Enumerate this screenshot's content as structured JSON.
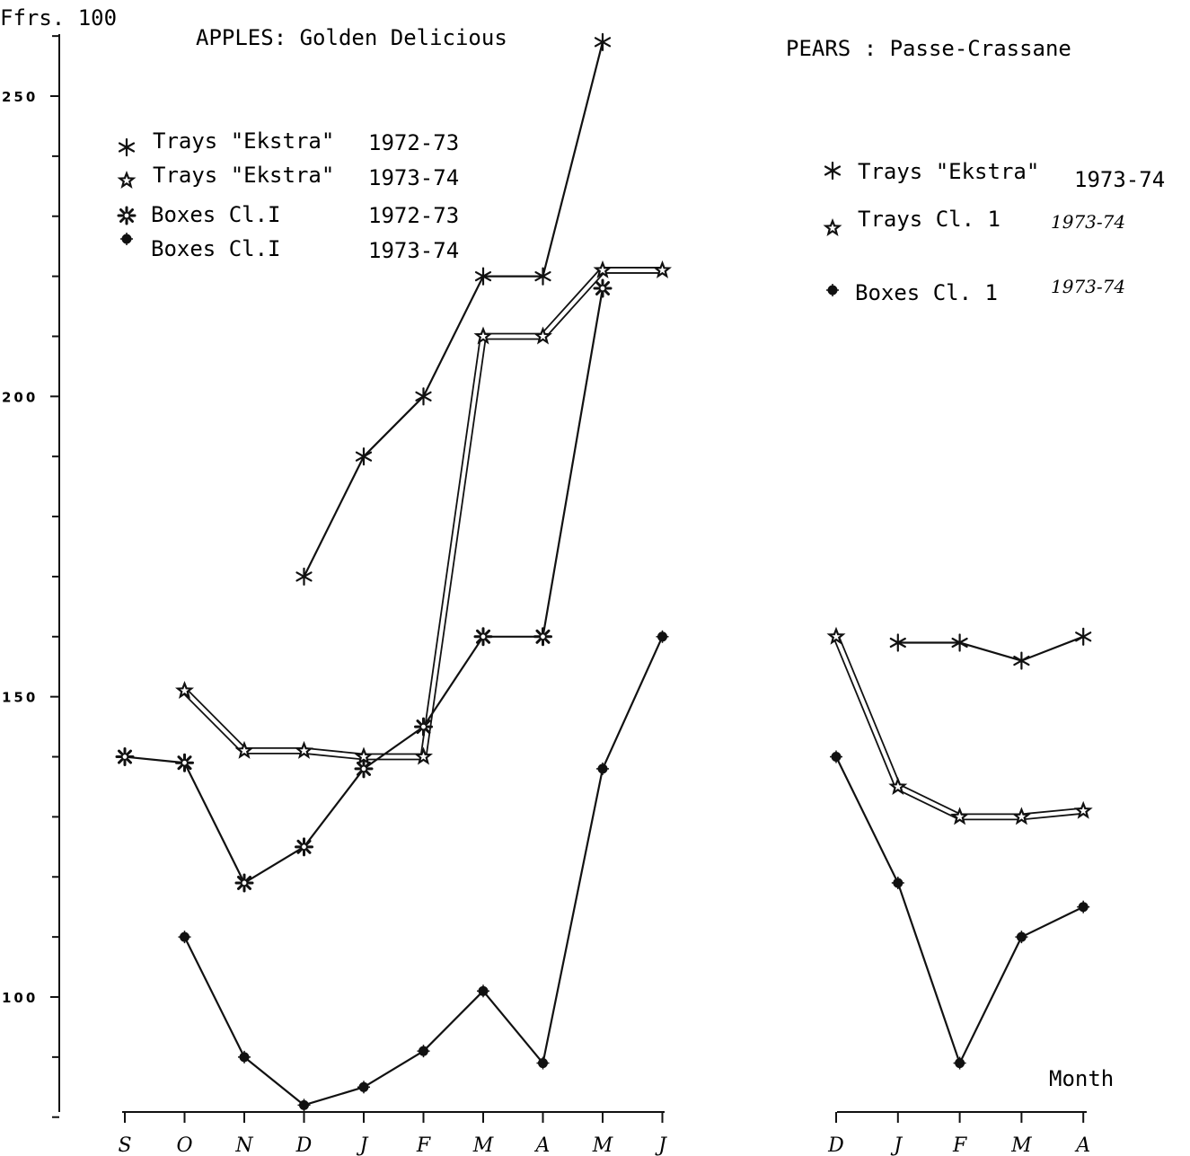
{
  "page": {
    "unit_label": "Ffrs. 100",
    "month_axis_label": "Month"
  },
  "chart_data": [
    {
      "type": "line",
      "title": "APPLES: Golden Delicious",
      "xlabel": "",
      "ylabel": "",
      "categories": [
        "S",
        "O",
        "N",
        "D",
        "J",
        "F",
        "M",
        "A",
        "M",
        "J"
      ],
      "y_ticks": [
        "250",
        "200",
        "150",
        "100"
      ],
      "ylim": [
        80,
        280
      ],
      "legend_position": "top-left",
      "series": [
        {
          "name": "Trays \"Ekstra\"",
          "season": "1972-73",
          "marker": "asterisk",
          "values": [
            null,
            null,
            null,
            170,
            190,
            200,
            220,
            220,
            259,
            null
          ]
        },
        {
          "name": "Trays \"Ekstra\"",
          "season": "1973-74",
          "marker": "star",
          "values": [
            null,
            151,
            141,
            141,
            140,
            140,
            210,
            210,
            221,
            221
          ]
        },
        {
          "name": "Boxes Cl.I",
          "season": "1972-73",
          "marker": "burst",
          "values": [
            140,
            139,
            119,
            125,
            138,
            145,
            160,
            160,
            218,
            null
          ]
        },
        {
          "name": "Boxes Cl.I",
          "season": "1973-74",
          "marker": "dot",
          "values": [
            null,
            110,
            90,
            82,
            85,
            91,
            101,
            89,
            138,
            160
          ]
        }
      ]
    },
    {
      "type": "line",
      "title": "PEARS : Passe-Crassane",
      "xlabel": "Month",
      "ylabel": "",
      "categories": [
        "D",
        "J",
        "F",
        "M",
        "A"
      ],
      "ylim": [
        80,
        280
      ],
      "legend_position": "top-right",
      "series": [
        {
          "name": "Trays \"Ekstra\"",
          "season": "1973-74",
          "marker": "asterisk",
          "values": [
            null,
            159,
            159,
            156,
            160
          ]
        },
        {
          "name": "Trays Cl. 1",
          "season": "1973-74",
          "marker": "star",
          "values": [
            160,
            135,
            130,
            130,
            131
          ]
        },
        {
          "name": "Boxes Cl. 1",
          "season": "1973-74",
          "marker": "dot",
          "values": [
            140,
            119,
            89,
            110,
            115
          ]
        }
      ]
    }
  ]
}
